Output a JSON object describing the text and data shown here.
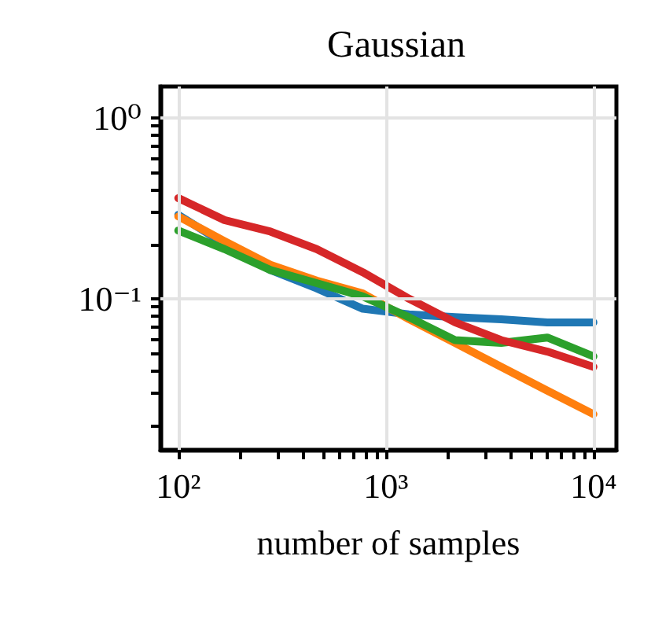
{
  "chart_data": {
    "type": "line",
    "title": "Gaussian",
    "xlabel": "number of samples",
    "log": "xy",
    "grid": true,
    "marker": "none",
    "line_style": "solid",
    "x": [
      100,
      167,
      278,
      464,
      774,
      1292,
      2154,
      3594,
      5995,
      10000
    ],
    "xlim": [
      82,
      12900
    ],
    "xticks": [
      {
        "value": 100,
        "label": "10²"
      },
      {
        "value": 200,
        "label": null
      },
      {
        "value": 300,
        "label": null
      },
      {
        "value": 400,
        "label": null
      },
      {
        "value": 500,
        "label": null
      },
      {
        "value": 600,
        "label": null
      },
      {
        "value": 700,
        "label": null
      },
      {
        "value": 800,
        "label": null
      },
      {
        "value": 900,
        "label": null
      },
      {
        "value": 1000,
        "label": "10³"
      },
      {
        "value": 2000,
        "label": null
      },
      {
        "value": 3000,
        "label": null
      },
      {
        "value": 4000,
        "label": null
      },
      {
        "value": 5000,
        "label": null
      },
      {
        "value": 6000,
        "label": null
      },
      {
        "value": 7000,
        "label": null
      },
      {
        "value": 8000,
        "label": null
      },
      {
        "value": 9000,
        "label": null
      },
      {
        "value": 10000,
        "label": "10⁴"
      }
    ],
    "ylim": [
      0.0146,
      1.49
    ],
    "yticks": [
      {
        "value": 0.02,
        "label": null
      },
      {
        "value": 0.03,
        "label": null
      },
      {
        "value": 0.04,
        "label": null
      },
      {
        "value": 0.05,
        "label": null
      },
      {
        "value": 0.06,
        "label": null
      },
      {
        "value": 0.07,
        "label": null
      },
      {
        "value": 0.08,
        "label": null
      },
      {
        "value": 0.09,
        "label": null
      },
      {
        "value": 0.1,
        "label": "10⁻¹"
      },
      {
        "value": 0.2,
        "label": null
      },
      {
        "value": 0.3,
        "label": null
      },
      {
        "value": 0.4,
        "label": null
      },
      {
        "value": 0.5,
        "label": null
      },
      {
        "value": 0.6,
        "label": null
      },
      {
        "value": 0.7,
        "label": null
      },
      {
        "value": 0.8,
        "label": null
      },
      {
        "value": 0.9,
        "label": null
      },
      {
        "value": 1,
        "label": "10⁰"
      }
    ],
    "series": [
      {
        "color": "#1f77b4",
        "values": [
          0.291,
          0.201,
          0.144,
          0.114,
          0.088,
          0.082,
          0.079,
          0.077,
          0.074,
          0.074
        ]
      },
      {
        "color": "#ff7f0e",
        "values": [
          0.285,
          0.208,
          0.154,
          0.126,
          0.107,
          0.077,
          0.057,
          0.042,
          0.031,
          0.023
        ]
      },
      {
        "color": "#2ca02c",
        "values": [
          0.238,
          0.188,
          0.144,
          0.122,
          0.103,
          0.079,
          0.059,
          0.057,
          0.061,
          0.048
        ]
      },
      {
        "color": "#d62728",
        "values": [
          0.36,
          0.272,
          0.235,
          0.188,
          0.14,
          0.1,
          0.074,
          0.059,
          0.051,
          0.042
        ]
      }
    ]
  }
}
